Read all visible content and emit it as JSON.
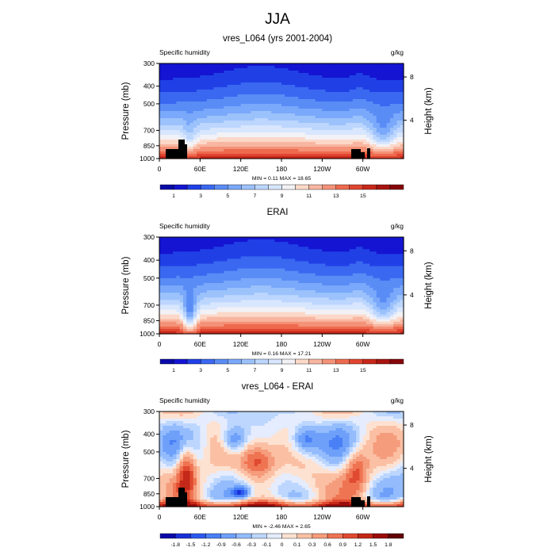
{
  "figure": {
    "title": "JJA"
  },
  "chart_data": [
    {
      "type": "heatmap",
      "title": "vres_L064 (yrs 2001-2004)",
      "left_label": "Specific humidity",
      "right_label": "g/kg",
      "ylabel": "Pressure (mb)",
      "ylabel_right": "Height (km)",
      "x_ticks": [
        "0",
        "60E",
        "120E",
        "180",
        "120W",
        "60W"
      ],
      "y_ticks": [
        "300",
        "400",
        "500",
        "700",
        "850",
        "1000"
      ],
      "y_right_ticks": [
        "8",
        "4"
      ],
      "stats": "MIN =   0.11  MAX =  18.65",
      "colorbar_labels": [
        "1",
        "3",
        "5",
        "7",
        "9",
        "11",
        "13",
        "15"
      ],
      "ylim": [
        1000,
        300
      ],
      "xlim": [
        0,
        360
      ],
      "field": "moisture"
    },
    {
      "type": "heatmap",
      "title": "ERAI",
      "left_label": "Specific humidity",
      "right_label": "g/kg",
      "ylabel": "Pressure (mb)",
      "ylabel_right": "Height (km)",
      "x_ticks": [
        "0",
        "60E",
        "120E",
        "180",
        "120W",
        "60W"
      ],
      "y_ticks": [
        "300",
        "400",
        "500",
        "700",
        "850",
        "1000"
      ],
      "y_right_ticks": [
        "8",
        "4"
      ],
      "stats": "MIN =   0.16  MAX =  17.21",
      "colorbar_labels": [
        "1",
        "3",
        "5",
        "7",
        "9",
        "11",
        "13",
        "15"
      ],
      "ylim": [
        1000,
        300
      ],
      "xlim": [
        0,
        360
      ],
      "field": "moisture"
    },
    {
      "type": "heatmap",
      "title": "vres_L064 - ERAI",
      "left_label": "Specific humidity",
      "right_label": "g/kg",
      "ylabel": "Pressure (mb)",
      "ylabel_right": "Height (km)",
      "x_ticks": [
        "0",
        "60E",
        "120E",
        "180",
        "120W",
        "60W"
      ],
      "y_ticks": [
        "300",
        "400",
        "500",
        "700",
        "850",
        "1000"
      ],
      "y_right_ticks": [
        "8",
        "4"
      ],
      "stats": "MIN =  -2.46  MAX =   2.65",
      "colorbar_labels": [
        "-1.8",
        "-1.5",
        "-1.2",
        "-0.9",
        "-0.6",
        "-0.3",
        "-0.1",
        "0",
        "0.1",
        "0.3",
        "0.6",
        "0.9",
        "1.2",
        "1.5",
        "1.8"
      ],
      "ylim": [
        1000,
        300
      ],
      "xlim": [
        0,
        360
      ],
      "field": "difference"
    }
  ],
  "colormap": [
    "#02026e",
    "#0a0aa8",
    "#1414d2",
    "#2040e6",
    "#3a68f0",
    "#5a8cf6",
    "#7aa8fa",
    "#9cc2fc",
    "#bcd6fe",
    "#d8e6fe",
    "#f2f2f6",
    "#fcd8c8",
    "#f8b6a0",
    "#f49278",
    "#ee6a4e",
    "#e04430",
    "#c8281a",
    "#a81410",
    "#86060a",
    "#620004"
  ]
}
